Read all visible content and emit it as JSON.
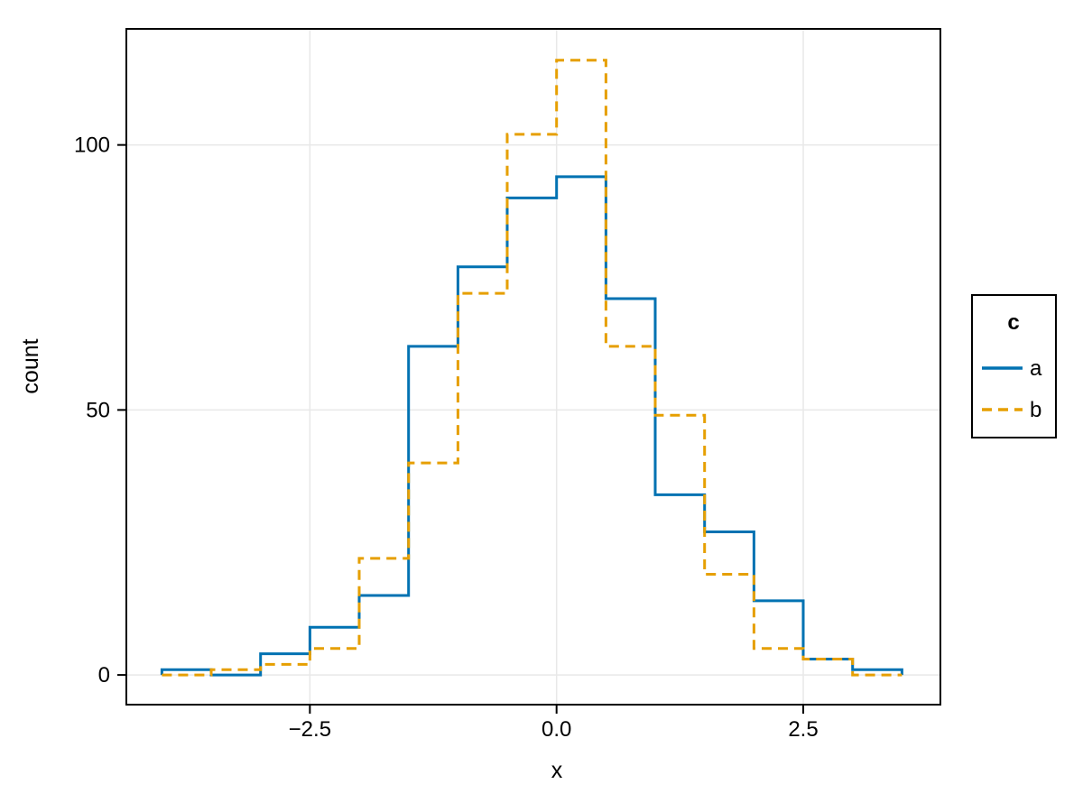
{
  "figure": {
    "xlabel": "x",
    "ylabel": "count",
    "legend": {
      "title": "c",
      "entries": [
        {
          "label": "a",
          "color": "#0072B2",
          "linestyle": "solid"
        },
        {
          "label": "b",
          "color": "#E69F00",
          "linestyle": "dashed"
        }
      ]
    }
  },
  "chart_data": {
    "type": "line",
    "subtype": "step-histogram-outline (binned counts drawn as steps)",
    "title": "",
    "xlabel": "x",
    "ylabel": "count",
    "bin_width": 0.5,
    "bin_edges": [
      -4.0,
      -3.5,
      -3.0,
      -2.5,
      -2.0,
      -1.5,
      -1.0,
      -0.5,
      0.0,
      0.5,
      1.0,
      1.5,
      2.0,
      2.5,
      3.0,
      3.5
    ],
    "series": [
      {
        "name": "a",
        "color": "#0072B2",
        "linestyle": "solid",
        "counts": [
          1,
          0,
          4,
          9,
          15,
          62,
          77,
          90,
          94,
          71,
          34,
          27,
          14,
          3,
          1
        ]
      },
      {
        "name": "b",
        "color": "#E69F00",
        "linestyle": "dashed",
        "counts": [
          0,
          1,
          2,
          5,
          22,
          40,
          72,
          102,
          116,
          62,
          49,
          19,
          5,
          3,
          0
        ]
      }
    ],
    "x_ticks": [
      -2.5,
      0.0,
      2.5
    ],
    "x_tick_labels": [
      "−2.5",
      "0.0",
      "2.5"
    ],
    "y_ticks": [
      0,
      50,
      100
    ],
    "y_tick_labels": [
      "0",
      "50",
      "100"
    ],
    "x_domain": [
      -4.36,
      3.89
    ],
    "y_domain": [
      -5.6,
      121.9
    ],
    "grid": true,
    "legend_position": "right-outside",
    "legend_title": "c"
  },
  "colors": {
    "background": "#ffffff",
    "grid": "#e8e8e8",
    "spine": "#000000",
    "text": "#000000",
    "series_a": "#0072B2",
    "series_b": "#E69F00"
  }
}
